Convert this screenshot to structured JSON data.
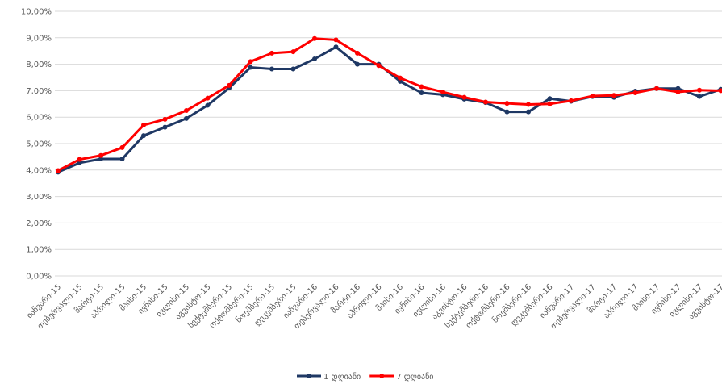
{
  "chart_data": {
    "type": "line",
    "categories": [
      "იანვარი-15",
      "თებერვალი-15",
      "მარტი-15",
      "აპრილი-15",
      "მაისი-15",
      "ივნისი-15",
      "ივლისი-15",
      "აგვისტო-15",
      "სექტემბერი-15",
      "ოქტომბერი-15",
      "ნოემბერი-15",
      "დეკემბერი-15",
      "იანვარი-16",
      "თებერვალი-16",
      "მარტი-16",
      "აპრილი-16",
      "მაისი-16",
      "ივნისი-16",
      "ივლისი-16",
      "აგვისტო-16",
      "სექტემბერი-16",
      "ოქტომბერი-16",
      "ნოემბერი-16",
      "დეკემბერი-16",
      "იანვარი-17",
      "თებერვალი-17",
      "მარტი-17",
      "აპრილი-17",
      "მაისი-17",
      "ივნისი-17",
      "ივლისი-17",
      "აგვისტო-17"
    ],
    "series": [
      {
        "name": "1 დღიანი",
        "color": "#1f3864",
        "values": [
          3.92,
          4.27,
          4.42,
          4.42,
          5.3,
          5.62,
          5.95,
          6.45,
          7.1,
          7.88,
          7.82,
          7.82,
          8.2,
          8.65,
          8.0,
          8.0,
          7.35,
          6.92,
          6.85,
          6.68,
          6.55,
          6.2,
          6.2,
          6.7,
          6.6,
          6.78,
          6.75,
          6.98,
          7.08,
          7.08,
          6.78,
          7.05
        ]
      },
      {
        "name": "7 დღიანი",
        "color": "#ff0000",
        "values": [
          3.98,
          4.4,
          4.55,
          4.85,
          5.7,
          5.92,
          6.25,
          6.72,
          7.2,
          8.1,
          8.42,
          8.47,
          8.97,
          8.92,
          8.42,
          7.95,
          7.48,
          7.15,
          6.95,
          6.75,
          6.57,
          6.52,
          6.48,
          6.5,
          6.62,
          6.8,
          6.82,
          6.92,
          7.08,
          6.95,
          7.02,
          7.0
        ]
      }
    ],
    "ylim": [
      0,
      10
    ],
    "yticks": [
      {
        "value": 0,
        "label": "0,00%"
      },
      {
        "value": 1,
        "label": "1,00%"
      },
      {
        "value": 2,
        "label": "2,00%"
      },
      {
        "value": 3,
        "label": "3,00%"
      },
      {
        "value": 4,
        "label": "4,00%"
      },
      {
        "value": 5,
        "label": "5,00%"
      },
      {
        "value": 6,
        "label": "6,00%"
      },
      {
        "value": 7,
        "label": "7,00%"
      },
      {
        "value": 8,
        "label": "8,00%"
      },
      {
        "value": 9,
        "label": "9,00%"
      },
      {
        "value": 10,
        "label": "10,00%"
      }
    ],
    "grid": true,
    "legend": "bottom"
  }
}
